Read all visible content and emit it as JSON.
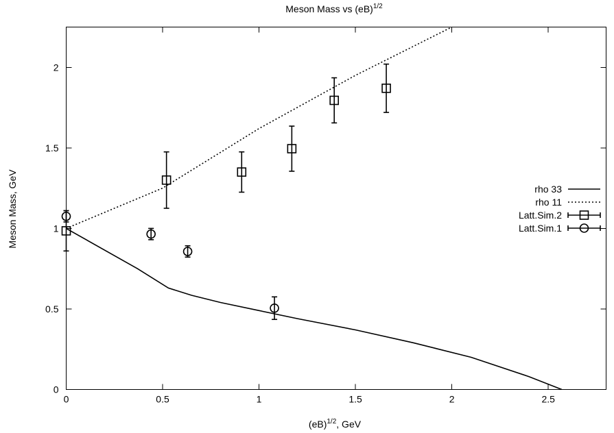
{
  "chart_data": {
    "type": "line",
    "title": "Meson Mass vs (eB)",
    "title_sup": "1/2",
    "xlabel": "(eB)",
    "xlabel_sup": "1/2",
    "xlabel_suffix": ", GeV",
    "ylabel": "Meson Mass, GeV",
    "xlim": [
      0,
      2.8
    ],
    "ylim": [
      0,
      2.25
    ],
    "xticks": [
      0,
      0.5,
      1,
      1.5,
      2,
      2.5
    ],
    "xtick_labels": [
      "0",
      "0.5",
      "1",
      "1.5",
      "2",
      "2.5"
    ],
    "yticks": [
      0,
      0.5,
      1,
      1.5,
      2
    ],
    "ytick_labels": [
      "0",
      "0.5",
      "1",
      "1.5",
      "2"
    ],
    "grid": false,
    "legend_position": "right",
    "series": [
      {
        "name": "rho 33",
        "style": "solid",
        "x": [
          0,
          0.37,
          0.53,
          0.65,
          0.8,
          1.0,
          1.2,
          1.5,
          1.8,
          2.1,
          2.4,
          2.57
        ],
        "y": [
          1.0,
          0.75,
          0.63,
          0.585,
          0.54,
          0.49,
          0.44,
          0.37,
          0.29,
          0.2,
          0.08,
          0.0
        ]
      },
      {
        "name": "rho 11",
        "style": "dotted",
        "x": [
          0,
          0.5,
          1.0,
          1.5,
          2.0
        ],
        "y": [
          1.0,
          1.25,
          1.62,
          1.95,
          2.25
        ]
      },
      {
        "name": "Latt.Sim.2",
        "style": "errorbars-square",
        "x": [
          0,
          0.52,
          0.91,
          1.17,
          1.39,
          1.66
        ],
        "y": [
          0.985,
          1.3,
          1.35,
          1.495,
          1.795,
          1.87
        ],
        "yerr": [
          0.125,
          0.175,
          0.125,
          0.14,
          0.14,
          0.15
        ]
      },
      {
        "name": "Latt.Sim.1",
        "style": "errorbars-circle",
        "x": [
          0,
          0.44,
          0.63,
          1.08
        ],
        "y": [
          1.075,
          0.965,
          0.857,
          0.505
        ],
        "yerr": [
          0.035,
          0.035,
          0.035,
          0.07
        ]
      }
    ]
  }
}
